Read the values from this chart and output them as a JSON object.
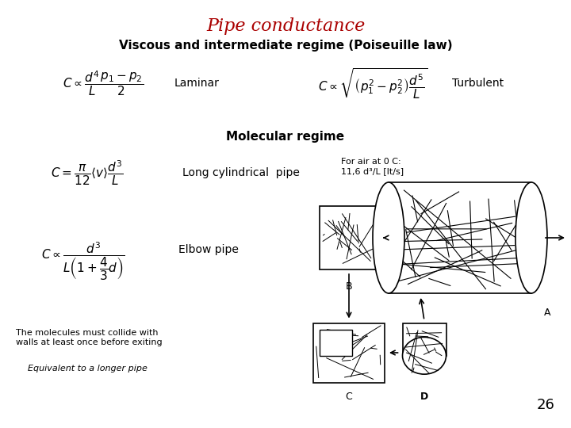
{
  "title": "Pipe conductance",
  "title_color": "#AA0000",
  "title_fontsize": 16,
  "subtitle": "Viscous and intermediate regime (Poiseuille law)",
  "subtitle_fontsize": 11,
  "bg_color": "#FFFFFF",
  "laminar_formula": "$C \\propto \\dfrac{d^{4}}{L} \\dfrac{p_1 - p_2}{2}$",
  "laminar_label": "Laminar",
  "turbulent_formula": "$C \\propto \\sqrt{\\left(p_1^{2} - p_2^{2}\\right)\\dfrac{d^{5}}{L}}$",
  "turbulent_label": "Turbulent",
  "mol_regime": "Molecular regime",
  "long_cyl_formula": "$C = \\dfrac{\\pi}{12}\\langle v \\rangle \\dfrac{d^{3}}{L}$",
  "long_cyl_label": "Long cylindrical  pipe",
  "long_cyl_note": "For air at 0 C:\n11,6 d³/L [lt/s]",
  "elbow_formula": "$C \\propto \\dfrac{d^{3}}{L\\left(1 + \\dfrac{4}{3}d\\right)}$",
  "elbow_label": "Elbow pipe",
  "note1": "The molecules must collide with\nwalls at least once before exiting",
  "note2": "Equivalent to a longer pipe",
  "page_num": "26",
  "formula_fontsize": 11,
  "label_fontsize": 10,
  "note_fontsize": 8
}
